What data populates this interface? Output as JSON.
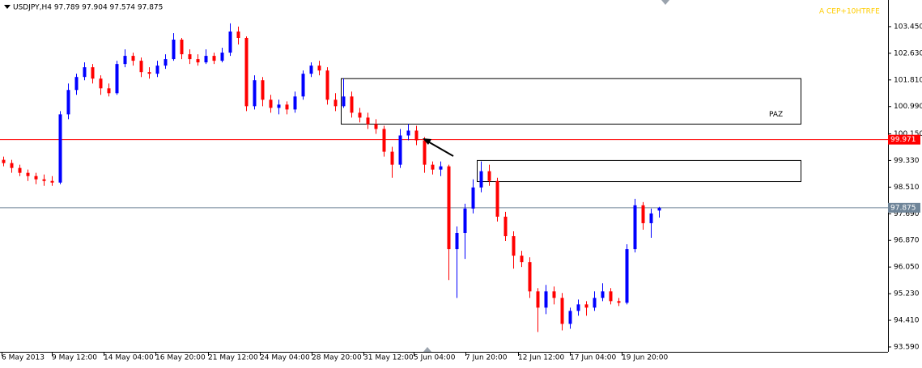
{
  "chart_data": {
    "type": "candlestick",
    "title": "USDJPY,H4  97.789 97.904 97.574 97.875",
    "indicator": "A CEP+10HTRFE",
    "up_color": "#0000ff",
    "down_color": "#ff0000",
    "ylim": [
      93.44,
      104.27
    ],
    "yticks": [
      {
        "value": 103.45,
        "label": "103.450"
      },
      {
        "value": 102.63,
        "label": "102.630"
      },
      {
        "value": 101.81,
        "label": "101.810"
      },
      {
        "value": 100.99,
        "label": "100.990"
      },
      {
        "value": 100.15,
        "label": "100.150"
      },
      {
        "value": 99.33,
        "label": "99.330"
      },
      {
        "value": 98.51,
        "label": "98.510"
      },
      {
        "value": 97.69,
        "label": "97.690"
      },
      {
        "value": 96.87,
        "label": "96.870"
      },
      {
        "value": 96.05,
        "label": "96.050"
      },
      {
        "value": 95.23,
        "label": "95.230"
      },
      {
        "value": 94.41,
        "label": "94.410"
      },
      {
        "value": 93.59,
        "label": "93.590"
      }
    ],
    "x_labels": [
      "6 May 2013",
      "9 May 12:00",
      "14 May 04:00",
      "16 May 20:00",
      "21 May 12:00",
      "24 May 04:00",
      "28 May 20:00",
      "31 May 12:00",
      "5 Jun 04:00",
      "7 Jun 20:00",
      "12 Jun 12:00",
      "17 Jun 04:00",
      "19 Jun 20:00"
    ],
    "levels": [
      {
        "value": 99.971,
        "label": "99.971",
        "color": "#ff0000"
      },
      {
        "value": 97.875,
        "label": "97.875",
        "color": "#6f8599"
      }
    ],
    "boxes": [
      {
        "label": "PAZ",
        "top": 101.85,
        "bottom": 100.45
      },
      {
        "top": 99.33,
        "bottom": 98.68
      }
    ],
    "candles": [
      [
        99.35,
        99.45,
        99.15,
        99.25
      ],
      [
        99.25,
        99.35,
        98.95,
        99.1
      ],
      [
        99.1,
        99.2,
        98.85,
        98.95
      ],
      [
        98.95,
        99.05,
        98.7,
        98.85
      ],
      [
        98.85,
        98.95,
        98.6,
        98.75
      ],
      [
        98.75,
        98.9,
        98.55,
        98.7
      ],
      [
        98.7,
        98.85,
        98.55,
        98.65
      ],
      [
        98.65,
        100.85,
        98.6,
        100.75
      ],
      [
        100.75,
        101.7,
        100.6,
        101.5
      ],
      [
        101.5,
        102.0,
        101.35,
        101.9
      ],
      [
        101.9,
        102.35,
        101.8,
        102.2
      ],
      [
        102.2,
        102.3,
        101.7,
        101.85
      ],
      [
        101.85,
        101.95,
        101.35,
        101.55
      ],
      [
        101.55,
        101.7,
        101.3,
        101.4
      ],
      [
        101.4,
        102.4,
        101.35,
        102.3
      ],
      [
        102.3,
        102.75,
        102.2,
        102.55
      ],
      [
        102.55,
        102.65,
        102.25,
        102.4
      ],
      [
        102.4,
        102.5,
        101.9,
        102.05
      ],
      [
        102.05,
        102.2,
        101.85,
        102.0
      ],
      [
        102.0,
        102.4,
        101.9,
        102.25
      ],
      [
        102.25,
        102.6,
        102.15,
        102.45
      ],
      [
        102.45,
        103.25,
        102.4,
        103.05
      ],
      [
        103.05,
        103.1,
        102.45,
        102.6
      ],
      [
        102.6,
        102.75,
        102.3,
        102.45
      ],
      [
        102.45,
        102.6,
        102.25,
        102.35
      ],
      [
        102.35,
        102.75,
        102.3,
        102.55
      ],
      [
        102.55,
        102.65,
        102.3,
        102.4
      ],
      [
        102.4,
        102.8,
        102.35,
        102.65
      ],
      [
        102.65,
        103.55,
        102.55,
        103.3
      ],
      [
        103.3,
        103.45,
        102.9,
        103.1
      ],
      [
        103.1,
        103.15,
        100.85,
        101.0
      ],
      [
        101.0,
        101.95,
        100.9,
        101.8
      ],
      [
        101.8,
        101.9,
        101.0,
        101.2
      ],
      [
        101.2,
        101.35,
        100.8,
        100.95
      ],
      [
        100.95,
        101.2,
        100.75,
        101.05
      ],
      [
        101.05,
        101.15,
        100.75,
        100.9
      ],
      [
        100.9,
        101.45,
        100.8,
        101.3
      ],
      [
        101.3,
        102.1,
        101.2,
        102.0
      ],
      [
        102.0,
        102.35,
        101.9,
        102.25
      ],
      [
        102.25,
        102.4,
        101.95,
        102.1
      ],
      [
        102.1,
        102.2,
        101.05,
        101.2
      ],
      [
        101.2,
        101.4,
        100.85,
        101.0
      ],
      [
        101.0,
        101.85,
        100.95,
        101.3
      ],
      [
        101.3,
        101.45,
        100.65,
        100.8
      ],
      [
        100.8,
        100.95,
        100.5,
        100.65
      ],
      [
        100.65,
        100.8,
        100.3,
        100.45
      ],
      [
        100.45,
        100.6,
        100.15,
        100.3
      ],
      [
        100.3,
        100.4,
        99.45,
        99.6
      ],
      [
        99.6,
        99.75,
        98.8,
        99.2
      ],
      [
        99.2,
        100.3,
        99.1,
        100.1
      ],
      [
        100.1,
        100.45,
        99.95,
        100.25
      ],
      [
        100.25,
        100.4,
        99.8,
        99.95
      ],
      [
        99.95,
        100.05,
        98.95,
        99.2
      ],
      [
        99.2,
        99.3,
        98.9,
        99.05
      ],
      [
        99.05,
        99.3,
        98.85,
        99.15
      ],
      [
        99.15,
        99.2,
        95.65,
        96.6
      ],
      [
        96.6,
        97.3,
        95.1,
        97.1
      ],
      [
        97.1,
        98.0,
        96.3,
        97.85
      ],
      [
        97.85,
        98.75,
        97.7,
        98.5
      ],
      [
        98.5,
        99.3,
        98.35,
        99.0
      ],
      [
        99.0,
        99.2,
        98.55,
        98.7
      ],
      [
        98.7,
        98.8,
        97.45,
        97.6
      ],
      [
        97.6,
        97.75,
        96.85,
        97.0
      ],
      [
        97.0,
        97.15,
        96.0,
        96.4
      ],
      [
        96.4,
        96.55,
        96.05,
        96.2
      ],
      [
        96.2,
        96.35,
        95.1,
        95.3
      ],
      [
        95.3,
        95.4,
        94.05,
        94.8
      ],
      [
        94.8,
        95.5,
        94.6,
        95.3
      ],
      [
        95.3,
        95.45,
        94.9,
        95.1
      ],
      [
        95.1,
        95.25,
        94.1,
        94.3
      ],
      [
        94.3,
        94.8,
        94.15,
        94.7
      ],
      [
        94.7,
        95.05,
        94.55,
        94.9
      ],
      [
        94.9,
        95.0,
        94.55,
        94.8
      ],
      [
        94.8,
        95.3,
        94.7,
        95.1
      ],
      [
        95.1,
        95.55,
        95.0,
        95.3
      ],
      [
        95.3,
        95.4,
        94.9,
        95.0
      ],
      [
        95.0,
        95.1,
        94.85,
        94.95
      ],
      [
        94.95,
        96.75,
        94.9,
        96.6
      ],
      [
        96.6,
        98.15,
        96.5,
        97.95
      ],
      [
        97.95,
        98.05,
        97.2,
        97.4
      ],
      [
        97.4,
        97.85,
        96.95,
        97.7
      ],
      [
        97.789,
        97.904,
        97.574,
        97.875
      ]
    ]
  }
}
